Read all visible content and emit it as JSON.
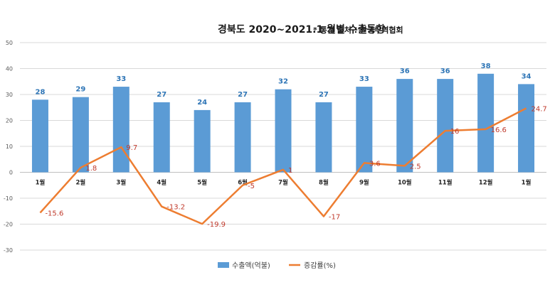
{
  "chart_data": {
    "type": "bar",
    "title": "경북도 2020~2021.1 월별 수출동향",
    "subtitle": "* 통계 출처 : 한국무역협회",
    "categories": [
      "1월",
      "2월",
      "3월",
      "4월",
      "5월",
      "6월",
      "7월",
      "8월",
      "9월",
      "10월",
      "11월",
      "12월",
      "1월"
    ],
    "series": [
      {
        "name": "수출액(억불)",
        "type": "bar",
        "color": "#5b9bd5",
        "values": [
          28,
          29,
          33,
          27,
          24,
          27,
          32,
          27,
          33,
          36,
          36,
          38,
          34
        ]
      },
      {
        "name": "증감률(%)",
        "type": "line",
        "color": "#ed7d31",
        "values": [
          -15.6,
          1.8,
          9.7,
          -13.2,
          -19.9,
          -5,
          1,
          -17,
          3.6,
          2.5,
          16,
          16.6,
          24.7
        ]
      }
    ],
    "y_ticks": [
      50,
      40,
      30,
      20,
      10,
      0,
      -10,
      -20,
      -30
    ],
    "ylim": [
      -30,
      50
    ],
    "grid": true,
    "legend": "bottom",
    "bar_label_color": "#2e75b6",
    "line_label_color": "#c0392b"
  }
}
